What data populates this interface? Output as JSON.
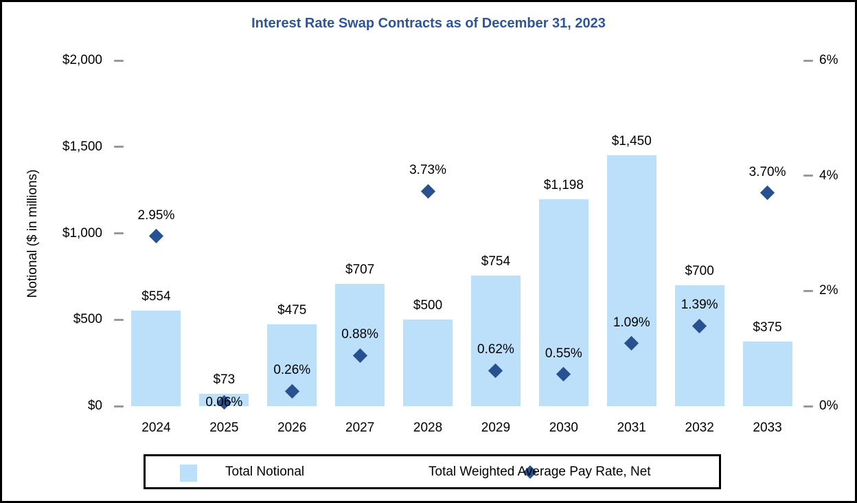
{
  "title": "Interest Rate Swap Contracts as of December 31, 2023",
  "y_axis_title": "Notional ($ in millions)",
  "legend": {
    "bar_label": "Total Notional",
    "marker_label": "Total Weighted Average Pay Rate, Net"
  },
  "colors": {
    "title": "#2E5597",
    "bar_fill": "#BDE0FA",
    "marker": "#27518F",
    "tick": "#999999",
    "border": "#000000"
  },
  "chart_data": {
    "type": "bar",
    "subtype": "bar + scatter combo, dual axis",
    "title": "Interest Rate Swap Contracts as of December 31, 2023",
    "categories": [
      "2024",
      "2025",
      "2026",
      "2027",
      "2028",
      "2029",
      "2030",
      "2031",
      "2032",
      "2033"
    ],
    "series": [
      {
        "name": "Total Notional",
        "type": "bar",
        "axis": "left",
        "values": [
          554,
          73,
          475,
          707,
          500,
          754,
          1198,
          1450,
          700,
          375
        ],
        "labels": [
          "$554",
          "$73",
          "$475",
          "$707",
          "$500",
          "$754",
          "$1,198",
          "$1,450",
          "$700",
          "$375"
        ]
      },
      {
        "name": "Total Weighted Average Pay Rate, Net",
        "type": "scatter",
        "axis": "right",
        "values": [
          2.95,
          0.06,
          0.26,
          0.88,
          3.73,
          0.62,
          0.55,
          1.09,
          1.39,
          3.7
        ],
        "labels": [
          "2.95%",
          "0.06%",
          "0.26%",
          "0.88%",
          "3.73%",
          "0.62%",
          "0.55%",
          "1.09%",
          "1.39%",
          "3.70%"
        ]
      }
    ],
    "left_axis": {
      "label": "Notional ($ in millions)",
      "min": 0,
      "max": 2000,
      "ticks": [
        {
          "value": 2000,
          "label": "$2,000"
        },
        {
          "value": 1500,
          "label": "$1,500"
        },
        {
          "value": 1000,
          "label": "$1,000"
        },
        {
          "value": 500,
          "label": "$500"
        },
        {
          "value": 0,
          "label": "$0"
        }
      ]
    },
    "right_axis": {
      "label": "",
      "min": 0,
      "max": 6,
      "ticks": [
        {
          "value": 6,
          "label": "6%"
        },
        {
          "value": 4,
          "label": "4%"
        },
        {
          "value": 2,
          "label": "2%"
        },
        {
          "value": 0,
          "label": "0%"
        }
      ]
    },
    "grid": false,
    "legend_position": "bottom"
  }
}
